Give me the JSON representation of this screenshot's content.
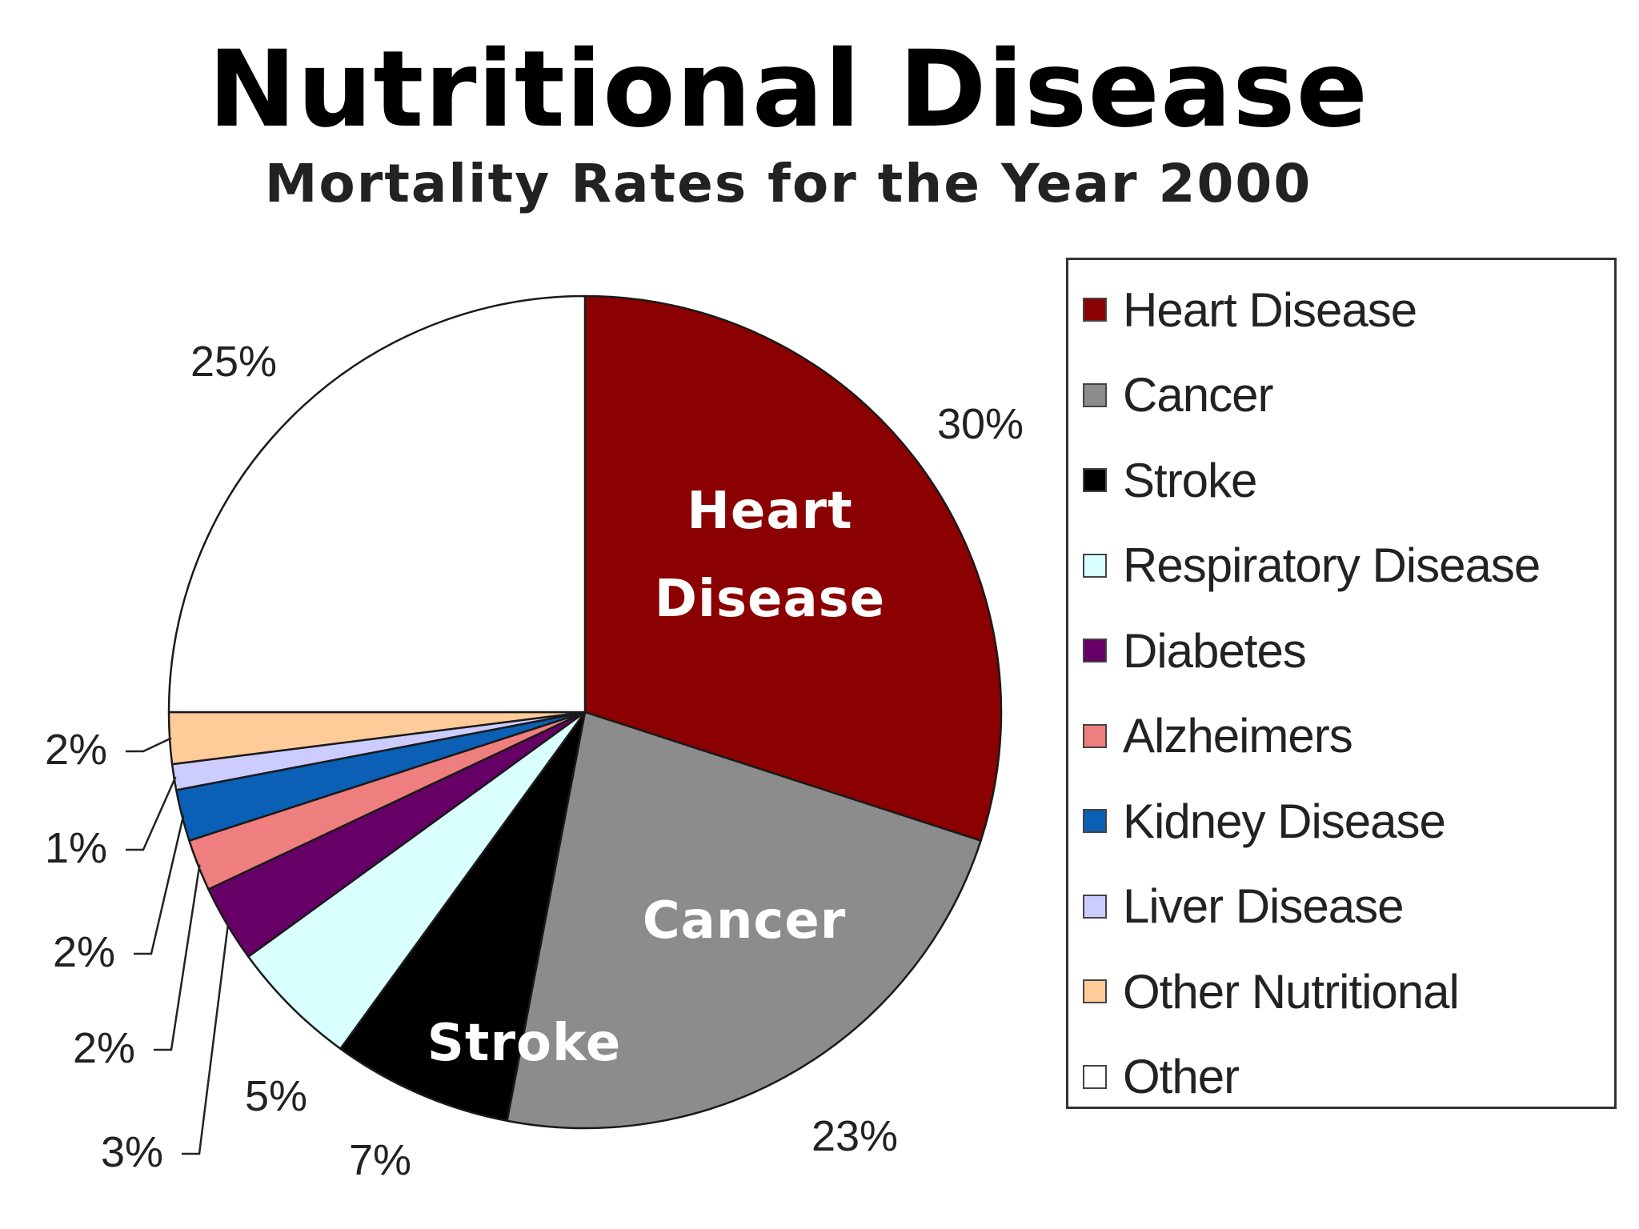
{
  "chart_data": {
    "type": "pie",
    "title": "Nutritional Disease",
    "subtitle": "Mortality Rates for the Year 2000",
    "slices": [
      {
        "name": "Heart Disease",
        "value": 30,
        "label": "30%",
        "color": "#8B0000",
        "inner_label": [
          "Heart",
          "Disease"
        ]
      },
      {
        "name": "Cancer",
        "value": 23,
        "label": "23%",
        "color": "#8C8C8C",
        "inner_label": [
          "Cancer"
        ]
      },
      {
        "name": "Stroke",
        "value": 7,
        "label": "7%",
        "color": "#000000",
        "inner_label": [
          "Stroke"
        ]
      },
      {
        "name": "Respiratory Disease",
        "value": 5,
        "label": "5%",
        "color": "#D9FFFF"
      },
      {
        "name": "Diabetes",
        "value": 3,
        "label": "3%",
        "color": "#660066"
      },
      {
        "name": "Alzheimers",
        "value": 2,
        "label": "2%",
        "color": "#EF7F7F"
      },
      {
        "name": "Kidney Disease",
        "value": 2,
        "label": "2%",
        "color": "#0B5FB5"
      },
      {
        "name": "Liver Disease",
        "value": 1,
        "label": "1%",
        "color": "#CCCCFF"
      },
      {
        "name": "Other Nutritional",
        "value": 2,
        "label": "2%",
        "color": "#FFCC99"
      },
      {
        "name": "Other",
        "value": 25,
        "label": "25%",
        "color": "#FFFFFF"
      }
    ],
    "legend": {
      "position": "right",
      "entries": [
        "Heart Disease",
        "Cancer",
        "Stroke",
        "Respiratory Disease",
        "Diabetes",
        "Alzheimers",
        "Kidney Disease",
        "Liver Disease",
        "Other Nutritional",
        "Other"
      ]
    }
  }
}
